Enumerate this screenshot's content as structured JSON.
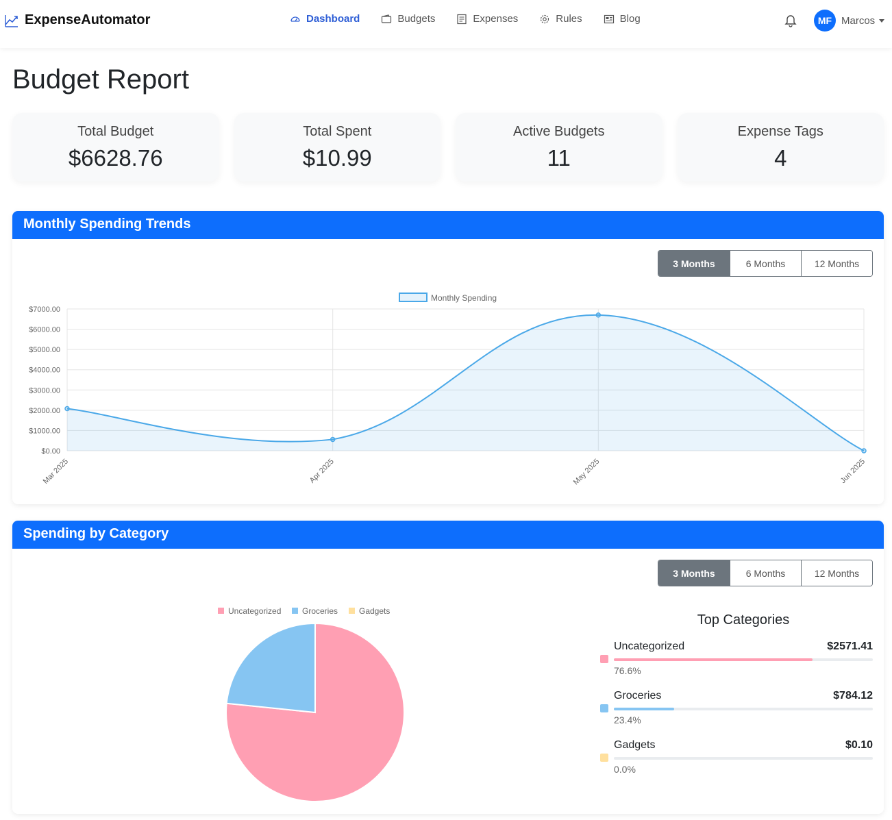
{
  "navbar": {
    "brand": "ExpenseAutomator",
    "links": [
      {
        "label": "Dashboard",
        "icon": "speedometer-icon",
        "active": true
      },
      {
        "label": "Budgets",
        "icon": "wallet-icon"
      },
      {
        "label": "Expenses",
        "icon": "receipt-icon"
      },
      {
        "label": "Rules",
        "icon": "gear-icon"
      },
      {
        "label": "Blog",
        "icon": "newspaper-icon"
      }
    ],
    "user_initials": "MF",
    "user_name": "Marcos"
  },
  "page_title": "Budget Report",
  "stats": [
    {
      "label": "Total Budget",
      "value": "$6628.76"
    },
    {
      "label": "Total Spent",
      "value": "$10.99"
    },
    {
      "label": "Active Budgets",
      "value": "11"
    },
    {
      "label": "Expense Tags",
      "value": "4"
    }
  ],
  "trends": {
    "title": "Monthly Spending Trends",
    "ranges": [
      "3 Months",
      "6 Months",
      "12 Months"
    ],
    "active_range": "3 Months"
  },
  "category": {
    "title": "Spending by Category",
    "ranges": [
      "3 Months",
      "6 Months",
      "12 Months"
    ],
    "active_range": "3 Months",
    "top_title": "Top Categories",
    "top": [
      {
        "name": "Uncategorized",
        "amount": "$2571.41",
        "pct_label": "76.6%",
        "pct": 76.6,
        "color": "#ff9fb3"
      },
      {
        "name": "Groceries",
        "amount": "$784.12",
        "pct_label": "23.4%",
        "pct": 23.4,
        "color": "#86c5f2"
      },
      {
        "name": "Gadgets",
        "amount": "$0.10",
        "pct_label": "0.0%",
        "pct": 0.0,
        "color": "#ffe09e"
      }
    ]
  },
  "chart_data": [
    {
      "type": "area",
      "title": "",
      "legend": [
        "Monthly Spending"
      ],
      "legend_position": "top",
      "categories": [
        "Mar 2025",
        "Apr 2025",
        "May 2025",
        "Jun 2025"
      ],
      "series": [
        {
          "name": "Monthly Spending",
          "values": [
            2080,
            560,
            6700,
            0
          ]
        }
      ],
      "ylim": [
        0,
        7000
      ],
      "yticks": [
        "$7000.00",
        "$6000.00",
        "$5000.00",
        "$4000.00",
        "$3000.00",
        "$2000.00",
        "$1000.00",
        "$0.00"
      ],
      "color": "#4aa8e8",
      "grid": true
    },
    {
      "type": "pie",
      "legend_position": "top",
      "labels": [
        "Uncategorized",
        "Groceries",
        "Gadgets"
      ],
      "values": [
        2571.41,
        784.12,
        0.1
      ],
      "colors": [
        "#ff9fb3",
        "#86c5f2",
        "#ffe09e"
      ]
    }
  ]
}
